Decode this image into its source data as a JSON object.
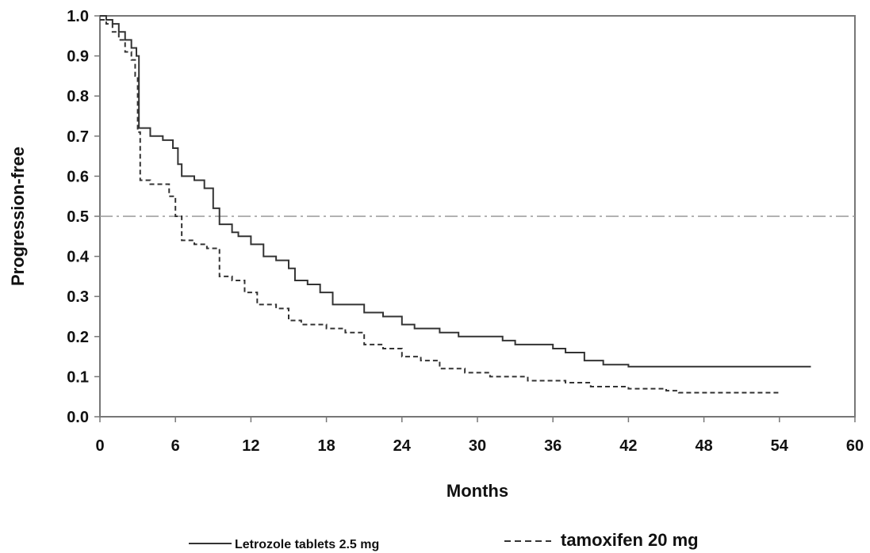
{
  "chart_data": {
    "type": "line",
    "title": "",
    "xlabel": "Months",
    "ylabel": "Progression-free",
    "xlim": [
      0,
      60
    ],
    "ylim": [
      0.0,
      1.0
    ],
    "x_ticks": [
      "0",
      "6",
      "12",
      "18",
      "24",
      "30",
      "36",
      "42",
      "48",
      "54",
      "60"
    ],
    "y_ticks": [
      "0.0",
      "0.1",
      "0.2",
      "0.3",
      "0.4",
      "0.5",
      "0.6",
      "0.7",
      "0.8",
      "0.9",
      "1.0"
    ],
    "reference_line": {
      "y": 0.5,
      "style": "dash-dot"
    },
    "grid": false,
    "legend": "bottom",
    "series": [
      {
        "name": "Letrozole tablets 2.5 mg",
        "style": "solid",
        "color": "#333333",
        "points": [
          [
            0,
            1.0
          ],
          [
            0.5,
            0.99
          ],
          [
            1,
            0.98
          ],
          [
            1.5,
            0.96
          ],
          [
            2,
            0.94
          ],
          [
            2.5,
            0.92
          ],
          [
            2.9,
            0.9
          ],
          [
            3.1,
            0.72
          ],
          [
            4,
            0.7
          ],
          [
            5,
            0.69
          ],
          [
            5.8,
            0.67
          ],
          [
            6.2,
            0.63
          ],
          [
            6.5,
            0.6
          ],
          [
            7.5,
            0.59
          ],
          [
            8.3,
            0.57
          ],
          [
            9,
            0.52
          ],
          [
            9.5,
            0.48
          ],
          [
            10.5,
            0.46
          ],
          [
            11,
            0.45
          ],
          [
            12,
            0.43
          ],
          [
            13,
            0.4
          ],
          [
            14,
            0.39
          ],
          [
            15,
            0.37
          ],
          [
            15.5,
            0.34
          ],
          [
            16.5,
            0.33
          ],
          [
            17.5,
            0.31
          ],
          [
            18.5,
            0.28
          ],
          [
            20,
            0.28
          ],
          [
            21,
            0.26
          ],
          [
            22.5,
            0.25
          ],
          [
            24,
            0.23
          ],
          [
            25,
            0.22
          ],
          [
            27,
            0.21
          ],
          [
            28.5,
            0.2
          ],
          [
            30,
            0.2
          ],
          [
            32,
            0.19
          ],
          [
            33,
            0.18
          ],
          [
            34.5,
            0.18
          ],
          [
            36,
            0.17
          ],
          [
            37,
            0.16
          ],
          [
            38.5,
            0.14
          ],
          [
            40,
            0.13
          ],
          [
            42,
            0.125
          ],
          [
            56.5,
            0.125
          ]
        ]
      },
      {
        "name": "tamoxifen 20 mg",
        "style": "dashed",
        "color": "#333333",
        "points": [
          [
            0,
            0.99
          ],
          [
            0.5,
            0.98
          ],
          [
            1,
            0.96
          ],
          [
            1.5,
            0.94
          ],
          [
            2,
            0.91
          ],
          [
            2.5,
            0.89
          ],
          [
            2.8,
            0.85
          ],
          [
            3,
            0.71
          ],
          [
            3.2,
            0.59
          ],
          [
            4,
            0.58
          ],
          [
            5.5,
            0.55
          ],
          [
            6,
            0.5
          ],
          [
            6.5,
            0.44
          ],
          [
            7.5,
            0.43
          ],
          [
            8.5,
            0.42
          ],
          [
            9.5,
            0.35
          ],
          [
            10.5,
            0.34
          ],
          [
            11.5,
            0.31
          ],
          [
            12.5,
            0.28
          ],
          [
            14,
            0.27
          ],
          [
            15,
            0.24
          ],
          [
            16,
            0.23
          ],
          [
            18,
            0.22
          ],
          [
            19.5,
            0.21
          ],
          [
            21,
            0.18
          ],
          [
            22.5,
            0.17
          ],
          [
            24,
            0.15
          ],
          [
            25.5,
            0.14
          ],
          [
            27,
            0.12
          ],
          [
            29,
            0.11
          ],
          [
            31,
            0.1
          ],
          [
            34,
            0.09
          ],
          [
            37,
            0.085
          ],
          [
            39,
            0.075
          ],
          [
            41,
            0.075
          ],
          [
            42,
            0.07
          ],
          [
            45,
            0.065
          ],
          [
            46,
            0.06
          ],
          [
            54,
            0.06
          ]
        ]
      }
    ]
  }
}
